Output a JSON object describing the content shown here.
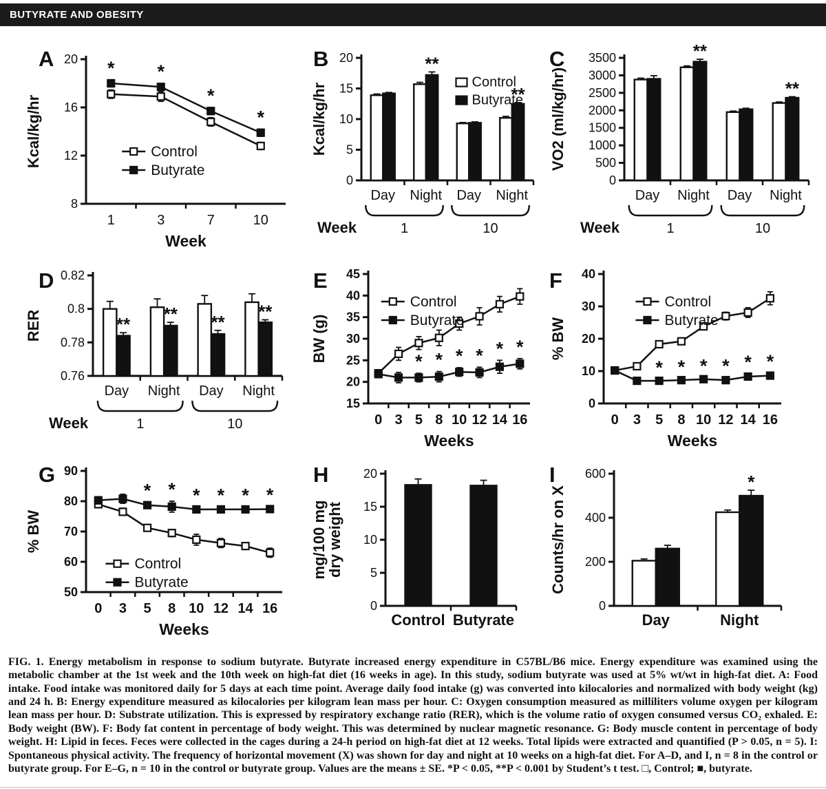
{
  "header": {
    "title": "BUTYRATE AND OBESITY",
    "bg_color": "#1b1b1b",
    "fg_color": "#ffffff"
  },
  "caption": {
    "text": "FIG. 1. Energy metabolism in response to sodium butyrate. Butyrate increased energy expenditure in C57BL/B6 mice. Energy expenditure was examined using the metabolic chamber at the 1st week and the 10th week on high-fat diet (16 weeks in age). In this study, sodium butyrate was used at 5% wt/wt in high-fat diet. A: Food intake. Food intake was monitored daily for 5 days at each time point. Average daily food intake (g) was converted into kilocalories and normalized with body weight (kg) and 24 h. B: Energy expenditure measured as kilocalories per kilogram lean mass per hour. C: Oxygen consumption measured as milliliters volume oxygen per kilogram lean mass per hour. D: Substrate utilization. This is expressed by respiratory exchange ratio (RER), which is the volume ratio of oxygen consumed versus CO₂ exhaled. E: Body weight (BW). F: Body fat content in percentage of body weight. This was determined by nuclear magnetic resonance. G: Body muscle content in percentage of body weight. H: Lipid in feces. Feces were collected in the cages during a 24-h period on high-fat diet at 12 weeks. Total lipids were extracted and quantified (P > 0.05, n = 5). I: Spontaneous physical activity. The frequency of horizontal movement (X) was shown for day and night at 10 weeks on a high-fat diet. For A–D, and I, n = 8 in the control or butyrate group. For E–G, n = 10 in the control or butyrate group. Values are the means ± SE. *P < 0.05, **P < 0.001 by Student’s t test. □, Control; ■, butyrate."
  },
  "colors": {
    "axis": "#111111",
    "control_fill": "#ffffff",
    "butyrate_fill": "#111111"
  },
  "chart_data": [
    {
      "id": "A",
      "type": "line",
      "title": "Food intake",
      "ylabel": "Kcal/kg/hr",
      "xlabel": "Week",
      "ylim": [
        8,
        20
      ],
      "yticks": [
        8,
        12,
        16,
        20
      ],
      "xticklabels": [
        "1",
        "3",
        "7",
        "10"
      ],
      "series": [
        {
          "name": "Control",
          "marker": "open",
          "values": [
            17.1,
            16.9,
            14.8,
            12.8
          ],
          "err": [
            0.35,
            0.4,
            0.35,
            0.3
          ]
        },
        {
          "name": "Butyrate",
          "marker": "filled",
          "values": [
            18.0,
            17.7,
            15.7,
            13.9
          ],
          "err": [
            0.3,
            0.3,
            0.3,
            0.3
          ]
        }
      ],
      "sig": [
        "*",
        "*",
        "*",
        "*"
      ],
      "legend": {
        "x": 0.18,
        "y": 0.6
      }
    },
    {
      "id": "B",
      "type": "groupbar",
      "title": "Energy expenditure",
      "ylabel": "Kcal/kg/hr",
      "ylim": [
        0,
        20
      ],
      "yticks": [
        0,
        5,
        10,
        15,
        20
      ],
      "categories": [
        "Day",
        "Night",
        "Day",
        "Night"
      ],
      "series": [
        {
          "name": "Control",
          "fill": "white",
          "values": [
            13.9,
            15.7,
            9.3,
            10.2
          ],
          "err": [
            0.2,
            0.3,
            0.15,
            0.25
          ]
        },
        {
          "name": "Butyrate",
          "fill": "black",
          "values": [
            14.2,
            17.2,
            9.4,
            12.5
          ],
          "err": [
            0.15,
            0.5,
            0.15,
            0.2
          ]
        }
      ],
      "sig": [
        "",
        "**",
        "",
        "**"
      ],
      "weeks": {
        "label": "Week",
        "groups": [
          {
            "text": "1",
            "from": 0,
            "to": 1
          },
          {
            "text": "10",
            "from": 2,
            "to": 3
          }
        ]
      },
      "legend": {
        "x": 0.55,
        "y": 0.2
      }
    },
    {
      "id": "C",
      "type": "groupbar",
      "title": "Oxygen consumption",
      "ylabel": "VO2 (ml/kg/hr)",
      "ylim": [
        0,
        3500
      ],
      "yticks": [
        0,
        500,
        1000,
        1500,
        2000,
        2500,
        3000,
        3500
      ],
      "categories": [
        "Day",
        "Night",
        "Day",
        "Night"
      ],
      "series": [
        {
          "name": "Control",
          "fill": "white",
          "values": [
            2880,
            3230,
            1950,
            2210
          ],
          "err": [
            40,
            40,
            30,
            30
          ]
        },
        {
          "name": "Butyrate",
          "fill": "black",
          "values": [
            2900,
            3390,
            2030,
            2360
          ],
          "err": [
            90,
            70,
            30,
            30
          ]
        }
      ],
      "sig": [
        "",
        "**",
        "",
        "**"
      ],
      "weeks": {
        "label": "Week",
        "groups": [
          {
            "text": "1",
            "from": 0,
            "to": 1
          },
          {
            "text": "10",
            "from": 2,
            "to": 3
          }
        ]
      }
    },
    {
      "id": "D",
      "type": "groupbar",
      "title": "Substrate utilization (RER)",
      "ylabel": "RER",
      "ylim": [
        0.76,
        0.82
      ],
      "yticks": [
        0.76,
        0.78,
        0.8,
        0.82
      ],
      "categories": [
        "Day",
        "Night",
        "Day",
        "Night"
      ],
      "series": [
        {
          "name": "Control",
          "fill": "white",
          "values": [
            0.8,
            0.801,
            0.803,
            0.804
          ],
          "err": [
            0.0045,
            0.005,
            0.005,
            0.005
          ]
        },
        {
          "name": "Butyrate",
          "fill": "black",
          "values": [
            0.784,
            0.79,
            0.785,
            0.792
          ],
          "err": [
            0.0018,
            0.002,
            0.0022,
            0.0015
          ]
        }
      ],
      "sig": [
        "**",
        "**",
        "**",
        "**"
      ],
      "weeks": {
        "label": "Week",
        "groups": [
          {
            "text": "1",
            "from": 0,
            "to": 1
          },
          {
            "text": "10",
            "from": 2,
            "to": 3
          }
        ]
      }
    },
    {
      "id": "E",
      "type": "line",
      "title": "Body weight",
      "ylabel": "BW (g)",
      "xlabel": "Weeks",
      "tick_bold": true,
      "ylim": [
        15,
        45
      ],
      "yticks": [
        15,
        20,
        25,
        30,
        35,
        40,
        45
      ],
      "xticklabels": [
        "0",
        "3",
        "5",
        "8",
        "10",
        "12",
        "14",
        "16"
      ],
      "series": [
        {
          "name": "Control",
          "marker": "open",
          "values": [
            22,
            26.5,
            29,
            30.2,
            33.5,
            35.2,
            38,
            39.8
          ],
          "err": [
            0.8,
            1.5,
            1.5,
            1.8,
            1.5,
            2.0,
            1.8,
            1.8
          ]
        },
        {
          "name": "Butyrate",
          "marker": "filled",
          "values": [
            21.8,
            21,
            21,
            21.2,
            22.3,
            22.2,
            23.5,
            24.2
          ],
          "err": [
            0.8,
            1.2,
            1.0,
            1.2,
            1.0,
            1.2,
            1.5,
            1.2
          ]
        }
      ],
      "sig": [
        "",
        "",
        "*",
        "*",
        "*",
        "*",
        "*",
        "*"
      ],
      "legend": {
        "x": 0.08,
        "y": 0.17
      }
    },
    {
      "id": "F",
      "type": "line",
      "title": "Body fat content",
      "ylabel": "% BW",
      "xlabel": "Weeks",
      "tick_bold": true,
      "ylim": [
        0,
        40
      ],
      "yticks": [
        0,
        10,
        20,
        30,
        40
      ],
      "xticklabels": [
        "0",
        "3",
        "5",
        "8",
        "10",
        "12",
        "14",
        "16"
      ],
      "series": [
        {
          "name": "Control",
          "marker": "open",
          "values": [
            10.2,
            11.5,
            18.3,
            19.2,
            23.8,
            27,
            28.1,
            32.5
          ],
          "err": [
            0.5,
            1.0,
            1.0,
            1.0,
            1.0,
            1.2,
            1.5,
            2.0
          ]
        },
        {
          "name": "Butyrate",
          "marker": "filled",
          "values": [
            10.2,
            7.0,
            7.0,
            7.2,
            7.5,
            7.2,
            8.3,
            8.6
          ],
          "err": [
            0.5,
            0.5,
            0.5,
            0.5,
            0.5,
            0.8,
            0.8,
            0.8
          ]
        }
      ],
      "sig": [
        "",
        "",
        "*",
        "*",
        "*",
        "*",
        "*",
        "*"
      ],
      "legend": {
        "x": 0.18,
        "y": 0.17
      }
    },
    {
      "id": "G",
      "type": "line",
      "title": "Body muscle content",
      "ylabel": "% BW",
      "xlabel": "Weeks",
      "tick_bold": true,
      "ylim": [
        50,
        90
      ],
      "yticks": [
        50,
        60,
        70,
        80,
        90
      ],
      "xticklabels": [
        "0",
        "3",
        "5",
        "8",
        "10",
        "12",
        "14",
        "16"
      ],
      "series": [
        {
          "name": "Control",
          "marker": "open",
          "values": [
            79,
            76.5,
            71.2,
            69.5,
            67.3,
            66.2,
            65.2,
            63
          ],
          "err": [
            1.0,
            1.2,
            1.0,
            1.2,
            1.8,
            1.5,
            1.0,
            1.5
          ]
        },
        {
          "name": "Butyrate",
          "marker": "filled",
          "values": [
            80.3,
            80.8,
            78.7,
            78.2,
            77.3,
            77.3,
            77.3,
            77.4
          ],
          "err": [
            1.2,
            1.5,
            1.0,
            1.8,
            0.8,
            0.8,
            0.8,
            0.8
          ]
        }
      ],
      "sig": [
        "",
        "",
        "*",
        "*",
        "*",
        "*",
        "*",
        "*"
      ],
      "legend": {
        "x": 0.1,
        "y": 0.72
      }
    },
    {
      "id": "H",
      "type": "groupbar",
      "title": "Lipid in feces",
      "ylabel": "mg/100 mg\ndry weight",
      "cat_bold": true,
      "ylim": [
        0,
        20
      ],
      "yticks": [
        0,
        5,
        10,
        15,
        20
      ],
      "categories": [
        "Control",
        "Butyrate"
      ],
      "series": [
        {
          "name": "Lipid",
          "fill": "black",
          "values": [
            18.3,
            18.2
          ],
          "err": [
            0.9,
            0.8
          ]
        }
      ],
      "sig": [
        "",
        ""
      ]
    },
    {
      "id": "I",
      "type": "groupbar",
      "title": "Spontaneous physical activity",
      "ylabel": "Counts/hr on X",
      "cat_bold": true,
      "ylim": [
        0,
        600
      ],
      "yticks": [
        0,
        200,
        400,
        600
      ],
      "categories": [
        "Day",
        "Night"
      ],
      "series": [
        {
          "name": "Control",
          "fill": "white",
          "values": [
            205,
            425
          ],
          "err": [
            8,
            10
          ]
        },
        {
          "name": "Butyrate",
          "fill": "black",
          "values": [
            260,
            500
          ],
          "err": [
            15,
            25
          ]
        }
      ],
      "sig": [
        "",
        "*"
      ]
    }
  ]
}
